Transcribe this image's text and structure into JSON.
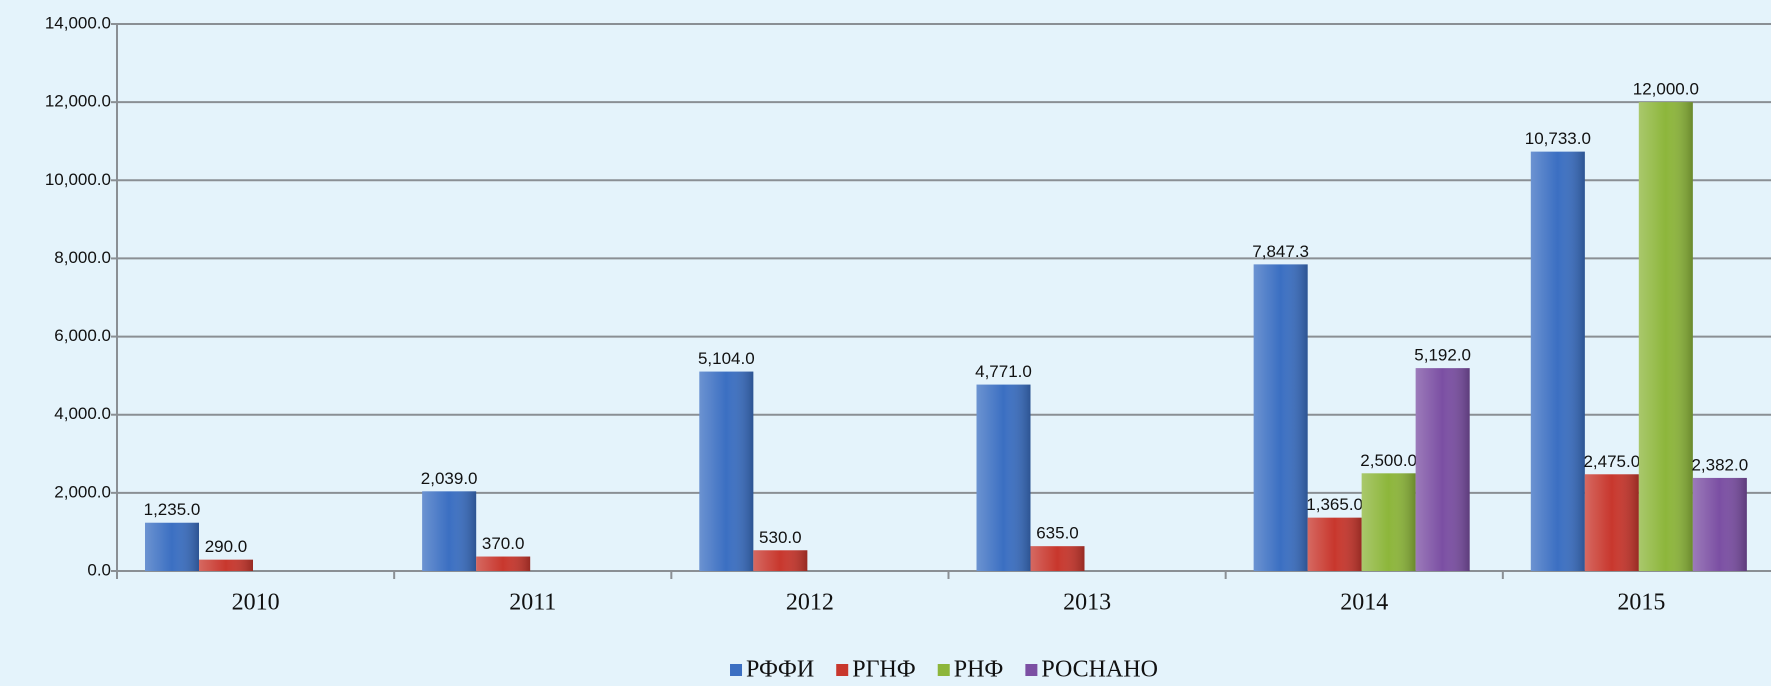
{
  "chart_data": {
    "type": "bar",
    "categories": [
      "2010",
      "2011",
      "2012",
      "2013",
      "2014",
      "2015"
    ],
    "series": [
      {
        "name": "РФФИ",
        "color": "#3b6fc2",
        "values": [
          1235,
          2039,
          5104,
          4771,
          7847.3,
          10733
        ],
        "value_labels": [
          "1,235.0",
          "2,039.0",
          "5,104.0",
          "4,771.0",
          "7,847.3",
          "10,733.0"
        ]
      },
      {
        "name": "РГНФ",
        "color": "#c8372d",
        "values": [
          290,
          370,
          530,
          635,
          1365,
          2475
        ],
        "value_labels": [
          "290.0",
          "370.0",
          "530.0",
          "635.0",
          "1,365.0",
          "2,475.0"
        ]
      },
      {
        "name": "РНФ",
        "color": "#8db63b",
        "values": [
          null,
          null,
          null,
          null,
          2500,
          12000
        ],
        "value_labels": [
          null,
          null,
          null,
          null,
          "2,500.0",
          "12,000.0"
        ]
      },
      {
        "name": "РОСНАНО",
        "color": "#7b4fa3",
        "values": [
          null,
          null,
          null,
          null,
          5192,
          2382
        ],
        "value_labels": [
          null,
          null,
          null,
          null,
          "5,192.0",
          "2,382.0"
        ]
      }
    ],
    "ylim": [
      0,
      14000
    ],
    "yticks": [
      {
        "value": 0,
        "label": "0.0"
      },
      {
        "value": 2000,
        "label": "2,000.0"
      },
      {
        "value": 4000,
        "label": "4,000.0"
      },
      {
        "value": 6000,
        "label": "6,000.0"
      },
      {
        "value": 8000,
        "label": "8,000.0"
      },
      {
        "value": 10000,
        "label": "10,000.0"
      },
      {
        "value": 12000,
        "label": "12,000.0"
      },
      {
        "value": 14000,
        "label": "14,000.0"
      }
    ],
    "grid": true,
    "legend": "bottom"
  }
}
